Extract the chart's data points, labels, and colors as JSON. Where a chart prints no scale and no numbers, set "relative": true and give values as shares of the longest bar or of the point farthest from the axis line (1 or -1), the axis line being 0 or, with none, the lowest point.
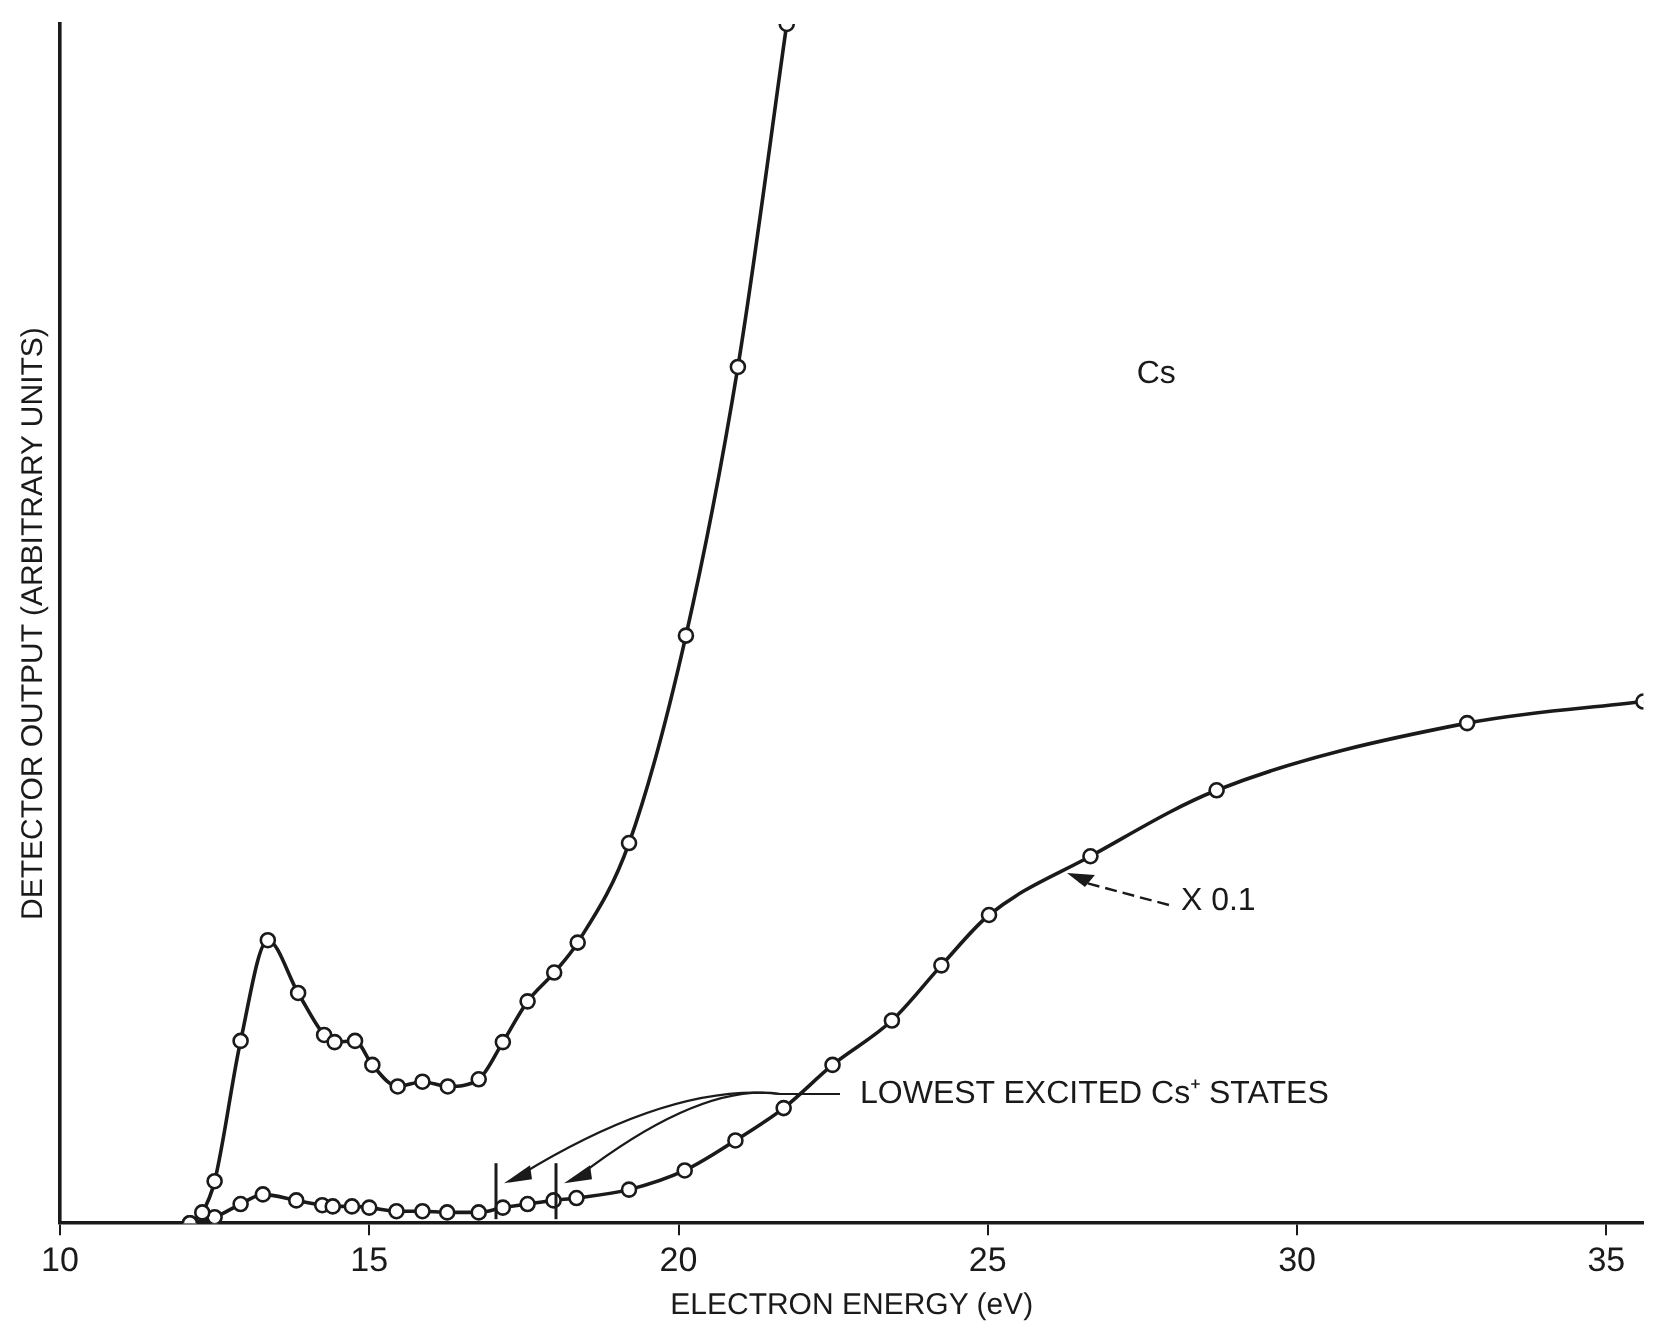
{
  "chart_data": {
    "type": "line",
    "relative": true,
    "xlabel": "ELECTRON ENERGY (eV)",
    "ylabel": "DETECTOR OUTPUT (ARBITRARY UNITS)",
    "xlim": [
      10,
      35.6
    ],
    "xticks": [
      10,
      15,
      20,
      25,
      30,
      35
    ],
    "marker": "circle",
    "grid": false,
    "legend": false,
    "series": [
      {
        "color": "#1a1a1a",
        "x": [
          12.1,
          12.3,
          12.5,
          12.92,
          13.36,
          13.85,
          14.27,
          14.44,
          14.77,
          15.05,
          15.46,
          15.86,
          16.27,
          16.77,
          17.16,
          17.56,
          17.99,
          18.37,
          19.2,
          20.12,
          20.96,
          21.75
        ],
        "values": [
          0,
          0.009,
          0.035,
          0.152,
          0.236,
          0.192,
          0.157,
          0.151,
          0.152,
          0.132,
          0.114,
          0.118,
          0.114,
          0.12,
          0.151,
          0.185,
          0.209,
          0.234,
          0.317,
          0.49,
          0.714,
          1.0
        ]
      },
      {
        "color": "#1a1a1a",
        "x": [
          12.1,
          12.5,
          12.92,
          13.28,
          13.82,
          14.24,
          14.41,
          14.72,
          15.0,
          15.44,
          15.86,
          16.26,
          16.77,
          17.16,
          17.56,
          17.98,
          18.35,
          19.2,
          20.1,
          20.92,
          21.7,
          22.49,
          23.45,
          24.25,
          25.02,
          26.66,
          28.7,
          32.75,
          35.6
        ],
        "values": [
          0,
          0.005,
          0.016,
          0.024,
          0.019,
          0.015,
          0.014,
          0.014,
          0.013,
          0.01,
          0.01,
          0.009,
          0.009,
          0.013,
          0.016,
          0.019,
          0.021,
          0.028,
          0.044,
          0.069,
          0.096,
          0.132,
          0.169,
          0.215,
          0.257,
          0.306,
          0.361,
          0.417,
          0.435
        ]
      }
    ],
    "annotations": [
      "Cs",
      {
        "text": "X 0.1",
        "x": 26.28,
        "y": 0.292
      },
      "LOWEST EXCITED Cs⁺ STATES"
    ]
  }
}
